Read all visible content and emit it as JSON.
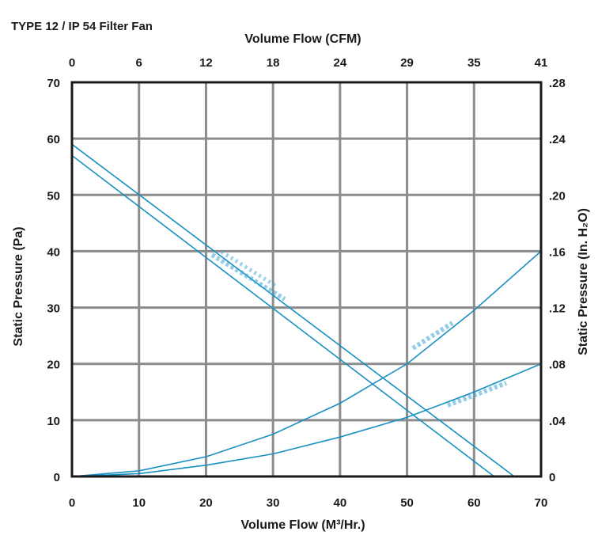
{
  "chart_data": {
    "type": "line",
    "title": "TYPE 12 / IP 54 Filter Fan",
    "xlabel": "Volume Flow (M³/Hr.)",
    "xlabel_top": "Volume Flow (CFM)",
    "ylabel": "Static Pressure (Pa)",
    "ylabel_right": "Static Pressure (In. H₂O)",
    "xlim": [
      0,
      70
    ],
    "ylim": [
      0,
      70
    ],
    "grid": true,
    "x_ticks": [
      "0",
      "10",
      "20",
      "30",
      "40",
      "50",
      "60",
      "70"
    ],
    "x_top_ticks": [
      "0",
      "6",
      "12",
      "18",
      "24",
      "29",
      "35",
      "41"
    ],
    "y_ticks": [
      "0",
      "10",
      "20",
      "30",
      "40",
      "50",
      "60",
      "70"
    ],
    "y_right_ticks": [
      "0",
      ".04",
      ".08",
      ".12",
      ".16",
      ".20",
      ".24",
      ".28"
    ],
    "series": [
      {
        "x": [
          0,
          66
        ],
        "y": [
          59,
          0
        ]
      },
      {
        "x": [
          0,
          63
        ],
        "y": [
          57,
          0
        ]
      },
      {
        "x": [
          0,
          10,
          20,
          30,
          40,
          50,
          60,
          70
        ],
        "y": [
          0,
          1,
          3.5,
          7.5,
          13,
          20,
          29.5,
          40
        ]
      },
      {
        "x": [
          0,
          10,
          20,
          30,
          40,
          50,
          60,
          70
        ],
        "y": [
          0,
          0.5,
          2,
          4,
          7,
          10.5,
          15,
          20
        ]
      }
    ],
    "line_color": "#1a8fc2"
  }
}
